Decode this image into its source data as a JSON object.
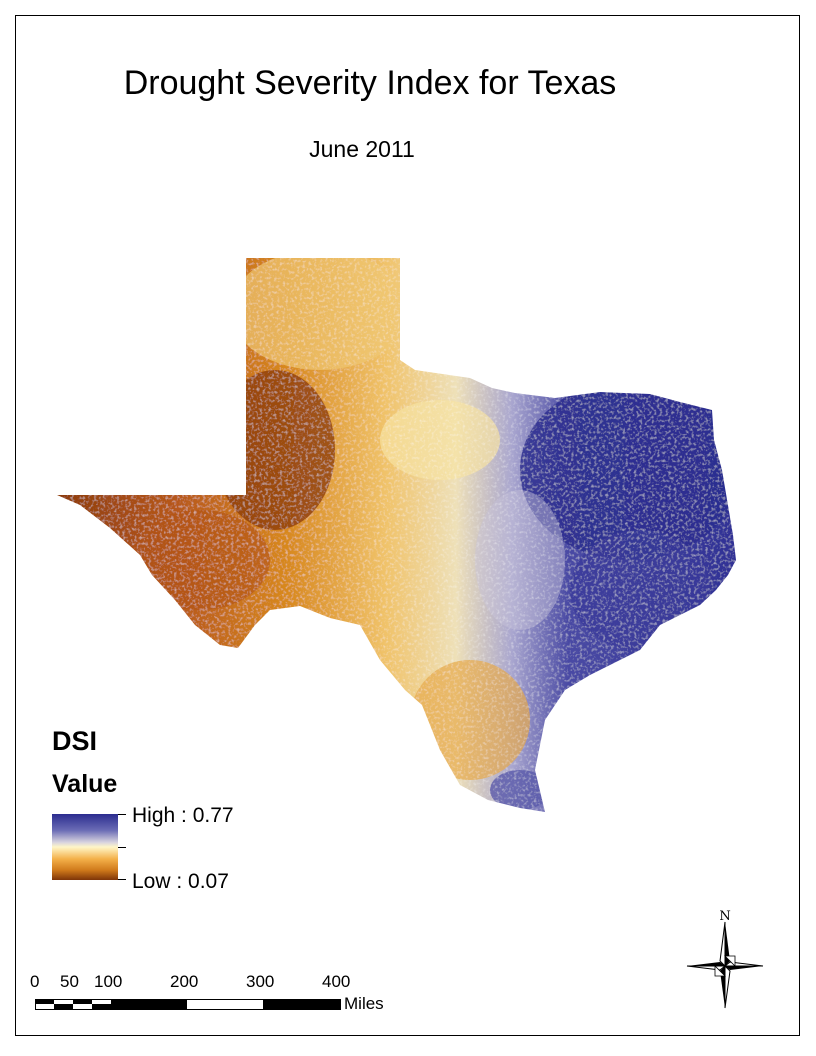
{
  "title": "Drought Severity Index for Texas",
  "subtitle": "June 2011",
  "legend": {
    "title": "DSI",
    "subtitle": "Value",
    "high_label": "High : 0.77",
    "low_label": "Low : 0.07",
    "colors": [
      "#2b2c8f",
      "#6c6db6",
      "#d8d4df",
      "#fff6c8",
      "#f4b14a",
      "#d07a1b",
      "#7e3408"
    ]
  },
  "scale_bar": {
    "ticks": [
      "0",
      "50",
      "100",
      "200",
      "300",
      "400"
    ],
    "unit": "Miles"
  },
  "north_arrow": {
    "label": "N",
    "icon": "compass-north-arrow-icon"
  },
  "map_colors": {
    "dry_dark": "#8a3a0c",
    "dry": "#d8891f",
    "moderate": "#f0c36a",
    "neutral": "#f6e9b8",
    "wet_light": "#a9a6cf",
    "wet": "#2e2f94"
  }
}
